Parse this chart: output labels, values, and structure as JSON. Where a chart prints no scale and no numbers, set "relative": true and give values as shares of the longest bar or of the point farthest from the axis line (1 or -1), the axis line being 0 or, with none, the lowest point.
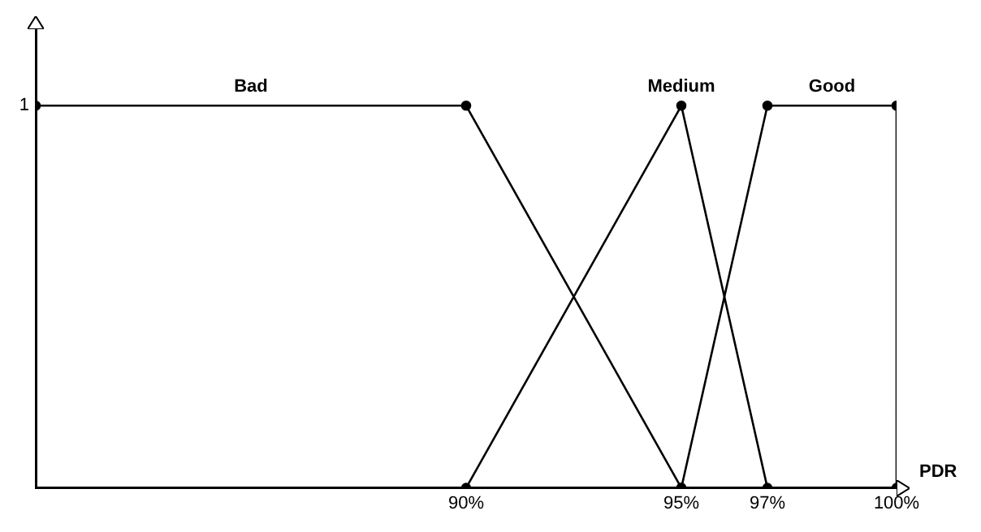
{
  "chart_data": {
    "type": "line",
    "xlabel": "PDR",
    "xlim": [
      80,
      100
    ],
    "xticks": [
      {
        "value": 90,
        "label": "90%"
      },
      {
        "value": 95,
        "label": "95%"
      },
      {
        "value": 97,
        "label": "97%"
      },
      {
        "value": 100,
        "label": "100%"
      }
    ],
    "relative": true,
    "annotations": [
      "1"
    ],
    "grid": false,
    "legend": false,
    "marker": "circle",
    "line_style": "solid",
    "series": [
      {
        "name": "Bad",
        "color": "#000000",
        "x": [
          80,
          90,
          95
        ],
        "values": [
          1,
          1,
          0
        ]
      },
      {
        "name": "Medium",
        "color": "#000000",
        "x": [
          90,
          95,
          97
        ],
        "values": [
          0,
          1,
          0
        ]
      },
      {
        "name": "Good",
        "color": "#000000",
        "x": [
          95,
          97,
          100,
          100
        ],
        "values": [
          0,
          1,
          1,
          0
        ]
      }
    ]
  }
}
